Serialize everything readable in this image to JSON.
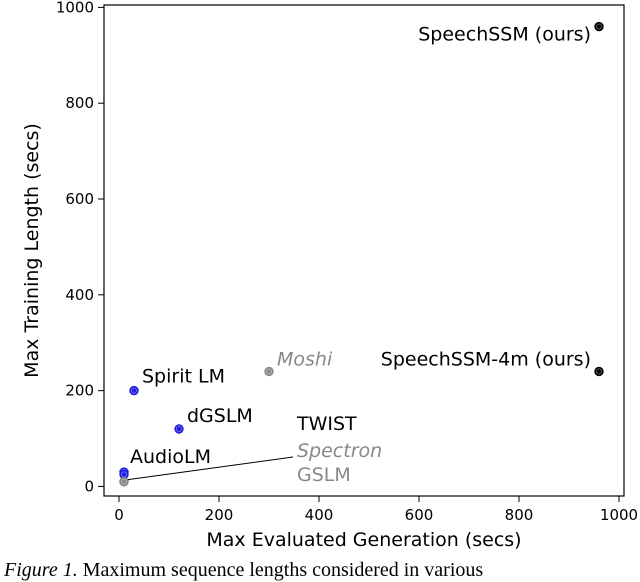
{
  "chart_data": {
    "type": "scatter",
    "xlabel": "Max Evaluated Generation (secs)",
    "ylabel": "Max Training Length (secs)",
    "xlim": [
      -30,
      1010
    ],
    "ylim": [
      -20,
      1005
    ],
    "xticks": [
      0,
      200,
      400,
      600,
      800,
      1000
    ],
    "yticks": [
      0,
      200,
      400,
      600,
      800,
      1000
    ],
    "grid": false,
    "colors": {
      "blue": "#1f1fe0",
      "black": "#000000",
      "gray": "#888888"
    },
    "points": [
      {
        "label": "SpeechSSM (ours)",
        "x": 960,
        "y": 960,
        "color": "black",
        "italic": false
      },
      {
        "label": "SpeechSSM-4m (ours)",
        "x": 960,
        "y": 240,
        "color": "black",
        "italic": false
      },
      {
        "label": "Moshi",
        "x": 300,
        "y": 240,
        "color": "gray",
        "italic": true
      },
      {
        "label": "Spirit LM",
        "x": 30,
        "y": 200,
        "color": "blue",
        "italic": false
      },
      {
        "label": "dGSLM",
        "x": 120,
        "y": 120,
        "color": "blue",
        "italic": false
      },
      {
        "label": "AudioLM",
        "x": 10,
        "y": 30,
        "color": "blue",
        "italic": false
      },
      {
        "label": "TWIST",
        "x": 10,
        "y": 25,
        "color": "blue",
        "italic": false
      },
      {
        "label": "Spectron",
        "x": 10,
        "y": 10,
        "color": "gray",
        "italic": true
      },
      {
        "label": "GSLM",
        "x": 10,
        "y": 10,
        "color": "gray",
        "italic": false
      }
    ]
  },
  "caption": {
    "figure_label": "Figure 1.",
    "text": " Maximum sequence lengths considered in various"
  }
}
